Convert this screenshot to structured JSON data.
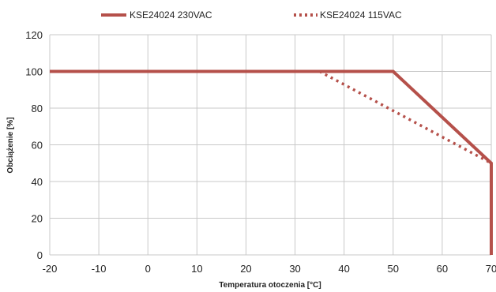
{
  "chart_data": {
    "type": "line",
    "title": "",
    "xlabel": "Temperatura otoczenia [°C]",
    "ylabel": "Obciążenie [%]",
    "xlim": [
      -20,
      70
    ],
    "ylim": [
      0,
      120
    ],
    "xticks": [
      -20,
      -10,
      0,
      10,
      20,
      30,
      40,
      50,
      60,
      70
    ],
    "yticks": [
      0,
      20,
      40,
      60,
      80,
      100,
      120
    ],
    "grid": true,
    "legend_position": "top",
    "series": [
      {
        "name": "KSE24024 230VAC",
        "style": "solid",
        "color": "#b5504a",
        "x": [
          -20,
          50,
          70,
          70
        ],
        "y": [
          100,
          100,
          50,
          0
        ]
      },
      {
        "name": "KSE24024 115VAC",
        "style": "dotted",
        "color": "#b5504a",
        "x": [
          35,
          70
        ],
        "y": [
          100,
          50
        ]
      }
    ]
  }
}
